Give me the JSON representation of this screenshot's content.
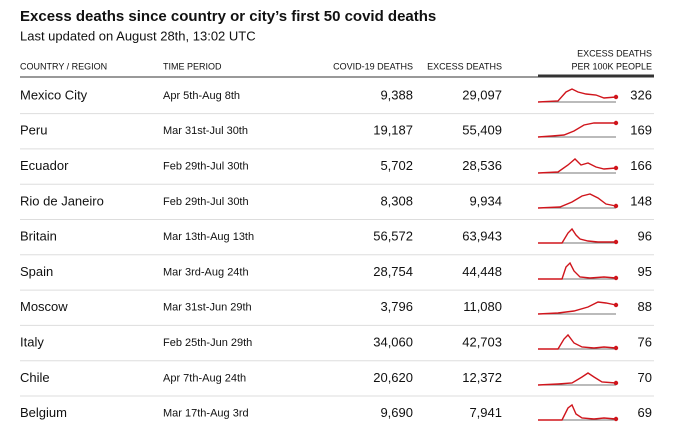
{
  "header": {
    "title": "Excess deaths since country or city’s first 50 covid deaths",
    "subtitle": "Last updated on August 28th, 13:02 UTC"
  },
  "table": {
    "columns": [
      "COUNTRY / REGION",
      "TIME PERIOD",
      "COVID-19 DEATHS",
      "EXCESS DEATHS",
      [
        "EXCESS DEATHS",
        "PER 100K PEOPLE"
      ]
    ],
    "rows": [
      [
        "Mexico City",
        "Apr 5th-Aug 8th",
        "9,388",
        "29,097",
        "326"
      ],
      [
        "Peru",
        "Mar 31st-Jul 30th",
        "19,187",
        "55,409",
        "169"
      ],
      [
        "Ecuador",
        "Feb 29th-Jul 30th",
        "5,702",
        "28,536",
        "166"
      ],
      [
        "Rio de Janeiro",
        "Feb 29th-Jul 30th",
        "8,308",
        "9,934",
        "148"
      ],
      [
        "Britain",
        "Mar 13th-Aug 13th",
        "56,572",
        "63,943",
        "96"
      ],
      [
        "Spain",
        "Mar 3rd-Aug 24th",
        "28,754",
        "44,448",
        "95"
      ],
      [
        "Moscow",
        "Mar 31st-Jun 29th",
        "3,796",
        "11,080",
        "88"
      ],
      [
        "Italy",
        "Feb 25th-Jun 29th",
        "34,060",
        "42,703",
        "76"
      ],
      [
        "Chile",
        "Apr 7th-Aug 24th",
        "20,620",
        "12,372",
        "70"
      ],
      [
        "Belgium",
        "Mar 17th-Aug 3rd",
        "9,690",
        "7,941",
        "69"
      ]
    ]
  }
}
